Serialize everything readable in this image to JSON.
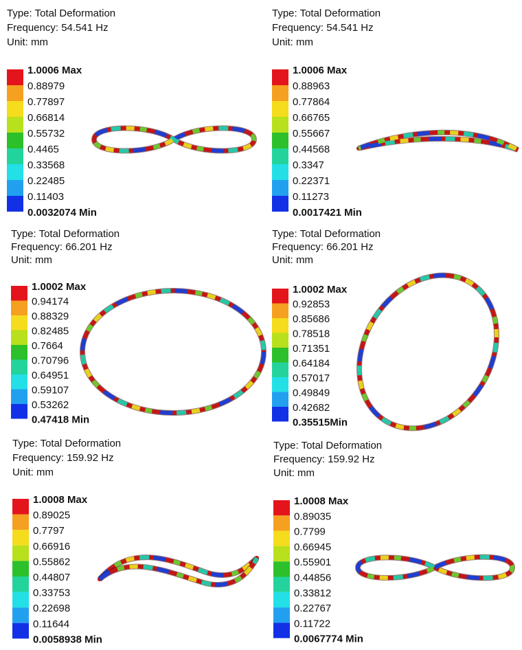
{
  "panels": [
    {
      "type": "Type: Total Deformation",
      "frequency": "Frequency: 54.541 Hz",
      "unit": "Unit: mm",
      "legend": [
        "1.0006 Max",
        "0.88979",
        "0.77897",
        "0.66814",
        "0.55732",
        "0.4465",
        "0.33568",
        "0.22485",
        "0.11403",
        "0.0032074 Min"
      ]
    },
    {
      "type": "Type: Total Deformation",
      "frequency": "Frequency: 54.541 Hz",
      "unit": "Unit: mm",
      "legend": [
        "1.0006 Max",
        "0.88963",
        "0.77864",
        "0.66765",
        "0.55667",
        "0.44568",
        "0.3347",
        "0.22371",
        "0.11273",
        "0.0017421 Min"
      ]
    },
    {
      "type": "Type: Total Deformation",
      "frequency": "Frequency: 66.201 Hz",
      "unit": "Unit: mm",
      "legend": [
        "1.0002 Max",
        "0.94174",
        "0.88329",
        "0.82485",
        "0.7664",
        "0.70796",
        "0.64951",
        "0.59107",
        "0.53262",
        "0.47418 Min"
      ]
    },
    {
      "type": "Type: Total Deformation",
      "frequency": "Frequency: 66.201 Hz",
      "unit": "Unit: mm",
      "legend": [
        "1.0002 Max",
        "0.92853",
        "0.85686",
        "0.78518",
        "0.71351",
        "0.64184",
        "0.57017",
        "0.49849",
        "0.42682",
        "0.35515Min"
      ]
    },
    {
      "type": "Type: Total Deformation",
      "frequency": "Frequency: 159.92 Hz",
      "unit": "Unit: mm",
      "legend": [
        "1.0008 Max",
        "0.89025",
        "0.7797",
        "0.66916",
        "0.55862",
        "0.44807",
        "0.33753",
        "0.22698",
        "0.11644",
        "0.0058938 Min"
      ]
    },
    {
      "type": "Type: Total Deformation",
      "frequency": "Frequency: 159.92 Hz",
      "unit": "Unit: mm",
      "legend": [
        "1.0008 Max",
        "0.89035",
        "0.7799",
        "0.66945",
        "0.55901",
        "0.44856",
        "0.33812",
        "0.22767",
        "0.11722",
        "0.0067774 Min"
      ]
    }
  ]
}
